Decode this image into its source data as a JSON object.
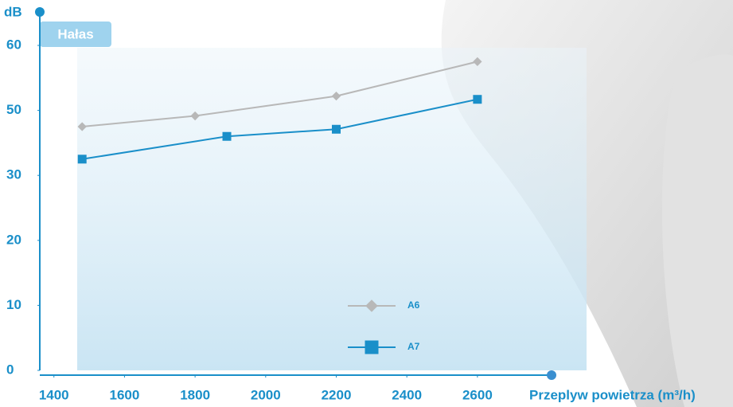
{
  "chart_data": {
    "type": "line",
    "badge": "Hałas",
    "y_label": "dB",
    "x_label": "Przeplyw powietrza (m³/h)",
    "xlim": [
      1360,
      2810
    ],
    "xticks": [
      1400,
      1600,
      1800,
      2000,
      2200,
      2400,
      2600
    ],
    "ylim": [
      0,
      60
    ],
    "yticks": [
      0,
      10,
      20,
      30,
      50,
      60
    ],
    "axis_color": "#1a8fc9",
    "series": [
      {
        "name": "A6",
        "color": "#b8b8b8",
        "marker": "diamond",
        "x": [
          1480,
          1800,
          2200,
          2600
        ],
        "values": [
          45,
          48.3,
          52.2,
          57.5
        ]
      },
      {
        "name": "A7",
        "color": "#1a8fc9",
        "marker": "square",
        "x": [
          1480,
          1890,
          2200,
          2600
        ],
        "values": [
          35,
          42,
          44.2,
          51.7
        ]
      }
    ]
  }
}
